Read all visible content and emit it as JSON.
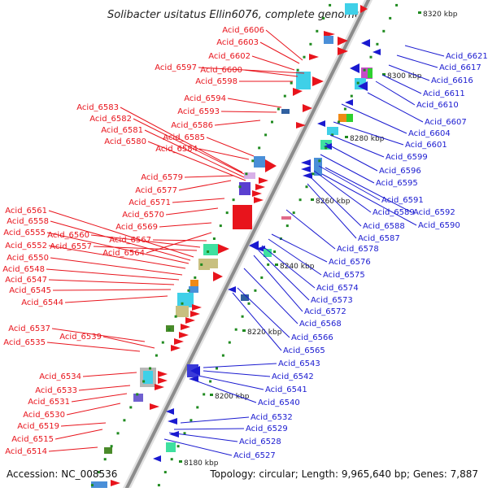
{
  "title": "Solibacter usitatus Ellin6076, complete genome",
  "footer": {
    "accession": "Accession: NC_008536",
    "summary": "Topology: circular; Length: 9,965,640 bp; Genes: 7,887"
  },
  "colors": {
    "backbone": "#9b9b9b",
    "left_labels": "#e8141c",
    "right_labels": "#1a1ad0",
    "tick": "#1f8a1f"
  },
  "kbp_marks": [
    "8320 kbp",
    "8300 kbp",
    "8280 kbp",
    "8260 kbp",
    "8240 kbp",
    "8220 kbp",
    "8200 kbp",
    "8180 kbp"
  ],
  "left_genes": [
    "Acid_6606",
    "Acid_6603",
    "Acid_6602",
    "Acid_6597",
    "Acid_6600",
    "Acid_6598",
    "Acid_6594",
    "Acid_6593",
    "Acid_6583",
    "Acid_6582",
    "Acid_6586",
    "Acid_6581",
    "Acid_6585",
    "Acid_6580",
    "Acid_6584",
    "Acid_6579",
    "Acid_6577",
    "Acid_6571",
    "Acid_6570",
    "Acid_6569",
    "Acid_6561",
    "Acid_6558",
    "Acid_6567",
    "Acid_6555",
    "Acid_6560",
    "Acid_6552",
    "Acid_6557",
    "Acid_6564",
    "Acid_6550",
    "Acid_6548",
    "Acid_6547",
    "Acid_6545",
    "Acid_6544",
    "Acid_6537",
    "Acid_6539",
    "Acid_6535",
    "Acid_6534",
    "Acid_6533",
    "Acid_6531",
    "Acid_6530",
    "Acid_6519",
    "Acid_6515",
    "Acid_6514"
  ],
  "right_genes": [
    "Acid_6621",
    "Acid_6617",
    "Acid_6616",
    "Acid_6611",
    "Acid_6610",
    "Acid_6607",
    "Acid_6604",
    "Acid_6601",
    "Acid_6599",
    "Acid_6596",
    "Acid_6595",
    "Acid_6591",
    "Acid_6592",
    "Acid_6589",
    "Acid_6590",
    "Acid_6588",
    "Acid_6587",
    "Acid_6578",
    "Acid_6576",
    "Acid_6575",
    "Acid_6574",
    "Acid_6573",
    "Acid_6572",
    "Acid_6568",
    "Acid_6566",
    "Acid_6565",
    "Acid_6543",
    "Acid_6542",
    "Acid_6541",
    "Acid_6540",
    "Acid_6532",
    "Acid_6529",
    "Acid_6528",
    "Acid_6527"
  ]
}
